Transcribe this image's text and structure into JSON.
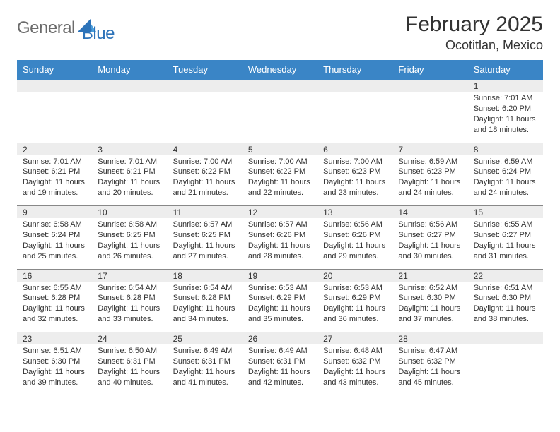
{
  "logo": {
    "word1": "General",
    "word2": "Blue",
    "gray": "#6b6b6b",
    "blue": "#2d73b9"
  },
  "title": "February 2025",
  "location": "Ocotitlan, Mexico",
  "header_bg": "#3a85c6",
  "daynum_bg": "#ededed",
  "text_color": "#333333",
  "day_headers": [
    "Sunday",
    "Monday",
    "Tuesday",
    "Wednesday",
    "Thursday",
    "Friday",
    "Saturday"
  ],
  "weeks": [
    [
      null,
      null,
      null,
      null,
      null,
      null,
      {
        "n": "1",
        "sr": "Sunrise: 7:01 AM",
        "ss": "Sunset: 6:20 PM",
        "dl": "Daylight: 11 hours and 18 minutes."
      }
    ],
    [
      {
        "n": "2",
        "sr": "Sunrise: 7:01 AM",
        "ss": "Sunset: 6:21 PM",
        "dl": "Daylight: 11 hours and 19 minutes."
      },
      {
        "n": "3",
        "sr": "Sunrise: 7:01 AM",
        "ss": "Sunset: 6:21 PM",
        "dl": "Daylight: 11 hours and 20 minutes."
      },
      {
        "n": "4",
        "sr": "Sunrise: 7:00 AM",
        "ss": "Sunset: 6:22 PM",
        "dl": "Daylight: 11 hours and 21 minutes."
      },
      {
        "n": "5",
        "sr": "Sunrise: 7:00 AM",
        "ss": "Sunset: 6:22 PM",
        "dl": "Daylight: 11 hours and 22 minutes."
      },
      {
        "n": "6",
        "sr": "Sunrise: 7:00 AM",
        "ss": "Sunset: 6:23 PM",
        "dl": "Daylight: 11 hours and 23 minutes."
      },
      {
        "n": "7",
        "sr": "Sunrise: 6:59 AM",
        "ss": "Sunset: 6:23 PM",
        "dl": "Daylight: 11 hours and 24 minutes."
      },
      {
        "n": "8",
        "sr": "Sunrise: 6:59 AM",
        "ss": "Sunset: 6:24 PM",
        "dl": "Daylight: 11 hours and 24 minutes."
      }
    ],
    [
      {
        "n": "9",
        "sr": "Sunrise: 6:58 AM",
        "ss": "Sunset: 6:24 PM",
        "dl": "Daylight: 11 hours and 25 minutes."
      },
      {
        "n": "10",
        "sr": "Sunrise: 6:58 AM",
        "ss": "Sunset: 6:25 PM",
        "dl": "Daylight: 11 hours and 26 minutes."
      },
      {
        "n": "11",
        "sr": "Sunrise: 6:57 AM",
        "ss": "Sunset: 6:25 PM",
        "dl": "Daylight: 11 hours and 27 minutes."
      },
      {
        "n": "12",
        "sr": "Sunrise: 6:57 AM",
        "ss": "Sunset: 6:26 PM",
        "dl": "Daylight: 11 hours and 28 minutes."
      },
      {
        "n": "13",
        "sr": "Sunrise: 6:56 AM",
        "ss": "Sunset: 6:26 PM",
        "dl": "Daylight: 11 hours and 29 minutes."
      },
      {
        "n": "14",
        "sr": "Sunrise: 6:56 AM",
        "ss": "Sunset: 6:27 PM",
        "dl": "Daylight: 11 hours and 30 minutes."
      },
      {
        "n": "15",
        "sr": "Sunrise: 6:55 AM",
        "ss": "Sunset: 6:27 PM",
        "dl": "Daylight: 11 hours and 31 minutes."
      }
    ],
    [
      {
        "n": "16",
        "sr": "Sunrise: 6:55 AM",
        "ss": "Sunset: 6:28 PM",
        "dl": "Daylight: 11 hours and 32 minutes."
      },
      {
        "n": "17",
        "sr": "Sunrise: 6:54 AM",
        "ss": "Sunset: 6:28 PM",
        "dl": "Daylight: 11 hours and 33 minutes."
      },
      {
        "n": "18",
        "sr": "Sunrise: 6:54 AM",
        "ss": "Sunset: 6:28 PM",
        "dl": "Daylight: 11 hours and 34 minutes."
      },
      {
        "n": "19",
        "sr": "Sunrise: 6:53 AM",
        "ss": "Sunset: 6:29 PM",
        "dl": "Daylight: 11 hours and 35 minutes."
      },
      {
        "n": "20",
        "sr": "Sunrise: 6:53 AM",
        "ss": "Sunset: 6:29 PM",
        "dl": "Daylight: 11 hours and 36 minutes."
      },
      {
        "n": "21",
        "sr": "Sunrise: 6:52 AM",
        "ss": "Sunset: 6:30 PM",
        "dl": "Daylight: 11 hours and 37 minutes."
      },
      {
        "n": "22",
        "sr": "Sunrise: 6:51 AM",
        "ss": "Sunset: 6:30 PM",
        "dl": "Daylight: 11 hours and 38 minutes."
      }
    ],
    [
      {
        "n": "23",
        "sr": "Sunrise: 6:51 AM",
        "ss": "Sunset: 6:30 PM",
        "dl": "Daylight: 11 hours and 39 minutes."
      },
      {
        "n": "24",
        "sr": "Sunrise: 6:50 AM",
        "ss": "Sunset: 6:31 PM",
        "dl": "Daylight: 11 hours and 40 minutes."
      },
      {
        "n": "25",
        "sr": "Sunrise: 6:49 AM",
        "ss": "Sunset: 6:31 PM",
        "dl": "Daylight: 11 hours and 41 minutes."
      },
      {
        "n": "26",
        "sr": "Sunrise: 6:49 AM",
        "ss": "Sunset: 6:31 PM",
        "dl": "Daylight: 11 hours and 42 minutes."
      },
      {
        "n": "27",
        "sr": "Sunrise: 6:48 AM",
        "ss": "Sunset: 6:32 PM",
        "dl": "Daylight: 11 hours and 43 minutes."
      },
      {
        "n": "28",
        "sr": "Sunrise: 6:47 AM",
        "ss": "Sunset: 6:32 PM",
        "dl": "Daylight: 11 hours and 45 minutes."
      },
      null
    ]
  ]
}
